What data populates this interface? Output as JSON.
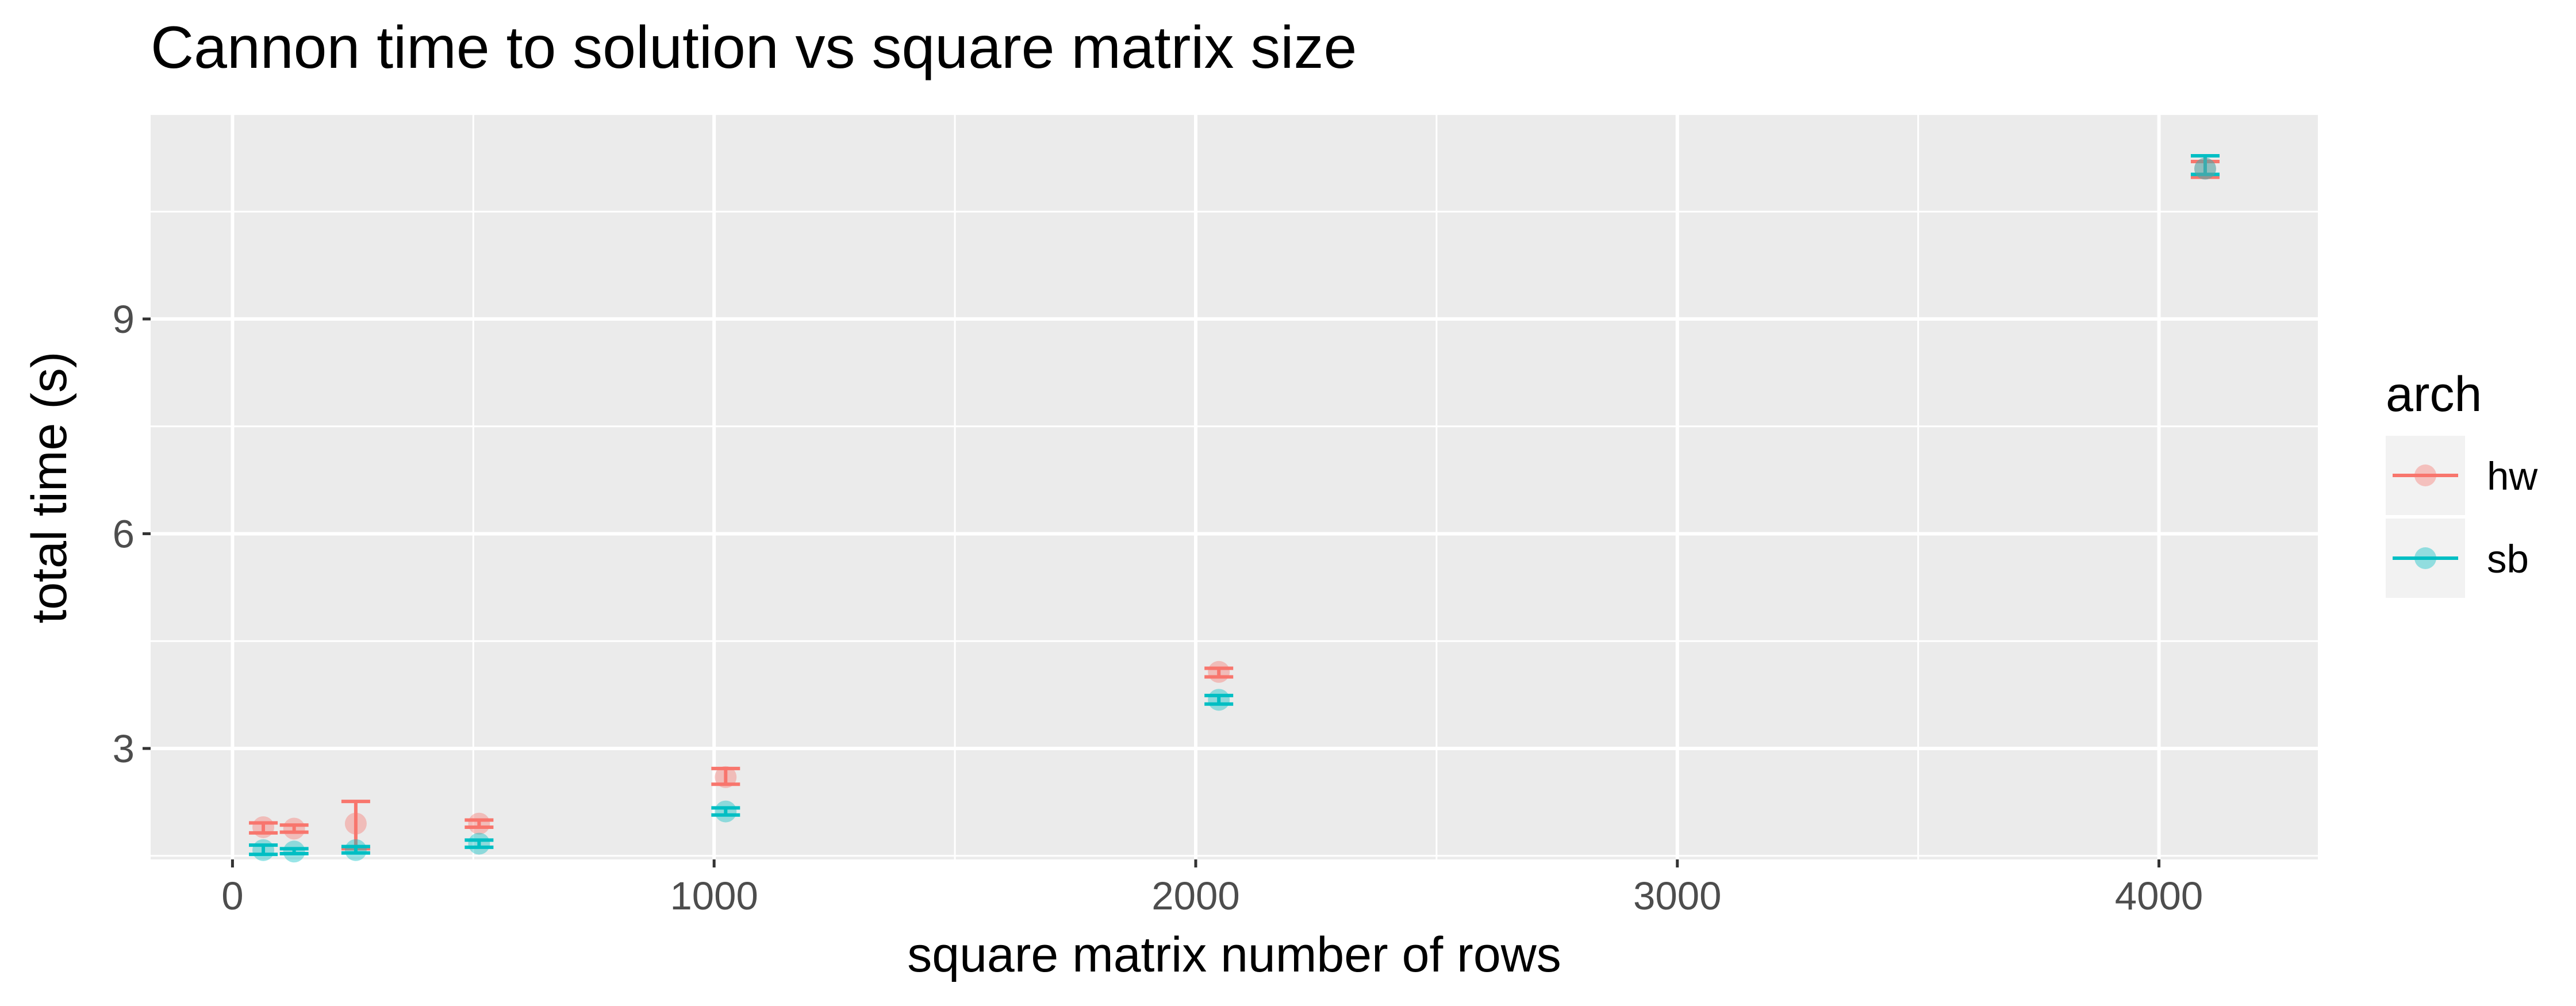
{
  "colors": {
    "hw": "#F8766D",
    "sb": "#00BFC4",
    "panel": "#EBEBEB",
    "grid": "#FFFFFF"
  },
  "chart_data": {
    "type": "scatter",
    "title": "Cannon time to solution vs square matrix size",
    "xlabel": "square matrix number of rows",
    "ylabel": "total time (s)",
    "xlim": [
      -170,
      4330
    ],
    "ylim": [
      1.45,
      11.85
    ],
    "x_ticks": [
      0,
      1000,
      2000,
      3000,
      4000
    ],
    "x_tick_labels": [
      "0",
      "1000",
      "2000",
      "3000",
      "4000"
    ],
    "x_minor": [
      500,
      1500,
      2500,
      3500
    ],
    "y_ticks": [
      3,
      6,
      9
    ],
    "y_tick_labels": [
      "3",
      "6",
      "9"
    ],
    "y_minor": [
      1.5,
      4.5,
      7.5,
      10.5
    ],
    "grid": true,
    "legend": {
      "title": "arch",
      "position": "right"
    },
    "series": [
      {
        "name": "hw",
        "color": "#F8766D",
        "points": [
          {
            "x": 64,
            "y": 1.9,
            "ymin": 1.82,
            "ymax": 1.96
          },
          {
            "x": 128,
            "y": 1.88,
            "ymin": 1.83,
            "ymax": 1.93
          },
          {
            "x": 256,
            "y": 1.95,
            "ymin": 1.6,
            "ymax": 2.26
          },
          {
            "x": 512,
            "y": 1.95,
            "ymin": 1.9,
            "ymax": 2.0
          },
          {
            "x": 1024,
            "y": 2.6,
            "ymin": 2.5,
            "ymax": 2.72
          },
          {
            "x": 2048,
            "y": 4.07,
            "ymin": 4.0,
            "ymax": 4.12
          },
          {
            "x": 4096,
            "y": 11.1,
            "ymin": 10.98,
            "ymax": 11.2
          }
        ]
      },
      {
        "name": "sb",
        "color": "#00BFC4",
        "points": [
          {
            "x": 64,
            "y": 1.58,
            "ymin": 1.52,
            "ymax": 1.65
          },
          {
            "x": 128,
            "y": 1.56,
            "ymin": 1.53,
            "ymax": 1.6
          },
          {
            "x": 256,
            "y": 1.58,
            "ymin": 1.54,
            "ymax": 1.63
          },
          {
            "x": 512,
            "y": 1.67,
            "ymin": 1.62,
            "ymax": 1.72
          },
          {
            "x": 1024,
            "y": 2.12,
            "ymin": 2.07,
            "ymax": 2.17
          },
          {
            "x": 2048,
            "y": 3.68,
            "ymin": 3.62,
            "ymax": 3.74
          },
          {
            "x": 4096,
            "y": 11.1,
            "ymin": 11.02,
            "ymax": 11.28
          }
        ]
      }
    ]
  }
}
